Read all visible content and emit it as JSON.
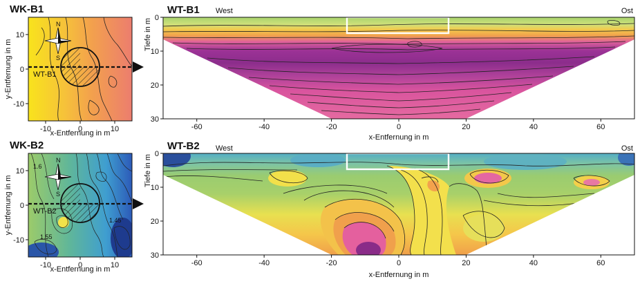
{
  "chart_data": [
    {
      "type": "heatmap",
      "title": "WK-B1",
      "xlabel": "x-Entfernung in m",
      "ylabel": "y-Entfernung in m",
      "xlim": [
        -15,
        15
      ],
      "ylim": [
        -15,
        15
      ],
      "xticks": [
        -10,
        0,
        10
      ],
      "yticks": [
        10,
        0,
        -10
      ],
      "annotations": [
        "WT-B1",
        "N",
        "S"
      ],
      "colors": {
        "low": "#f7e21a",
        "mid": "#f4a84a",
        "high": "#e9707a"
      }
    },
    {
      "type": "heatmap",
      "title": "WT-B1",
      "xlabel": "x-Entfernung in m",
      "ylabel": "Tiefe in m",
      "xlim": [
        -70,
        70
      ],
      "ylim": [
        30,
        0
      ],
      "xticks": [
        -60,
        -40,
        -20,
        0,
        20,
        40,
        60
      ],
      "yticks": [
        0,
        10,
        20,
        30
      ],
      "left_label": "West",
      "right_label": "Ost",
      "highlight_box": {
        "x": [
          -15,
          15
        ],
        "depth": [
          0,
          5
        ]
      },
      "colors": {
        "top": "#a9d36e",
        "band": "#f2c84b",
        "deep": "#8a2c88",
        "bottom": "#e45a9a"
      }
    },
    {
      "type": "heatmap",
      "title": "WK-B2",
      "xlabel": "x-Entfernung in m",
      "ylabel": "y-Entfernung in m",
      "xlim": [
        -15,
        15
      ],
      "ylim": [
        -15,
        15
      ],
      "xticks": [
        -10,
        0,
        10
      ],
      "yticks": [
        10,
        0,
        -10
      ],
      "annotations": [
        "WT-B2",
        "N",
        "S",
        "1.6",
        "1.55",
        "1.45"
      ],
      "colors": {
        "low": "#1e3b8e",
        "mid": "#52b3c4",
        "high": "#8cc56a"
      }
    },
    {
      "type": "heatmap",
      "title": "WT-B2",
      "xlabel": "x-Entfernung in m",
      "ylabel": "Tiefe in m",
      "xlim": [
        -70,
        70
      ],
      "ylim": [
        30,
        0
      ],
      "xticks": [
        -60,
        -40,
        -20,
        0,
        20,
        40,
        60
      ],
      "yticks": [
        0,
        10,
        20,
        30
      ],
      "left_label": "West",
      "right_label": "Ost",
      "highlight_box": {
        "x": [
          -15,
          15
        ],
        "depth": [
          0,
          5
        ]
      },
      "colors": {
        "top": "#5ab0c0",
        "green": "#8cc56a",
        "yellow": "#f3e24a",
        "pink": "#e45a9a",
        "deep": "#8a2c88"
      }
    }
  ]
}
